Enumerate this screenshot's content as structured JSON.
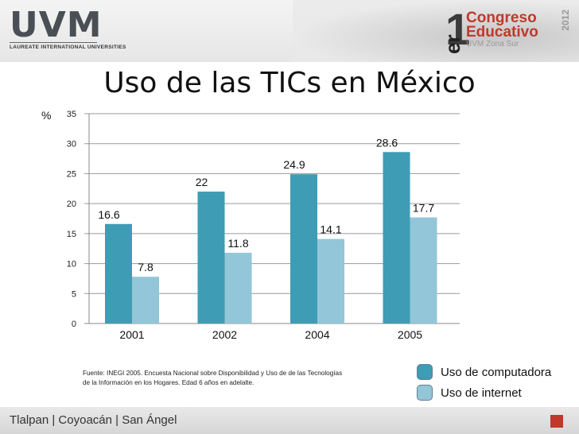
{
  "header": {
    "logo_text": "UVM",
    "logo_subtitle": "LAUREATE INTERNATIONAL UNIVERSITIES",
    "congress_number": "1",
    "congress_suffix": "er",
    "congress_line1": "Congreso",
    "congress_line2": "Educativo",
    "congress_line3": "UVM Zona Sur",
    "congress_year": "2012"
  },
  "slide": {
    "title": "Uso de las TICs en México",
    "source_note": "Fuente: INEGI 2005. Encuesta Nacional sobre Disponibilidad y Uso de de las Tecnologías de la Información en los Hogares. Edad 6 años en adelalte."
  },
  "footer": {
    "campuses": "Tlalpan | Coyoacán | San Ángel"
  },
  "chart_data": {
    "type": "bar",
    "title": "Uso de las TICs en México",
    "ylabel": "%",
    "xlabel": "",
    "categories": [
      "2001",
      "2002",
      "2004",
      "2005"
    ],
    "series": [
      {
        "name": "Uso de computadora",
        "values": [
          16.6,
          22,
          24.9,
          28.6
        ],
        "color": "#3f9cb5"
      },
      {
        "name": "Uso de internet",
        "values": [
          7.8,
          11.8,
          14.1,
          17.7
        ],
        "color": "#93c6d8"
      }
    ],
    "ylim": [
      0,
      35
    ],
    "yticks": [
      0,
      5,
      10,
      15,
      20,
      25,
      30,
      35
    ],
    "grid": true,
    "legend": "bottom-right"
  }
}
